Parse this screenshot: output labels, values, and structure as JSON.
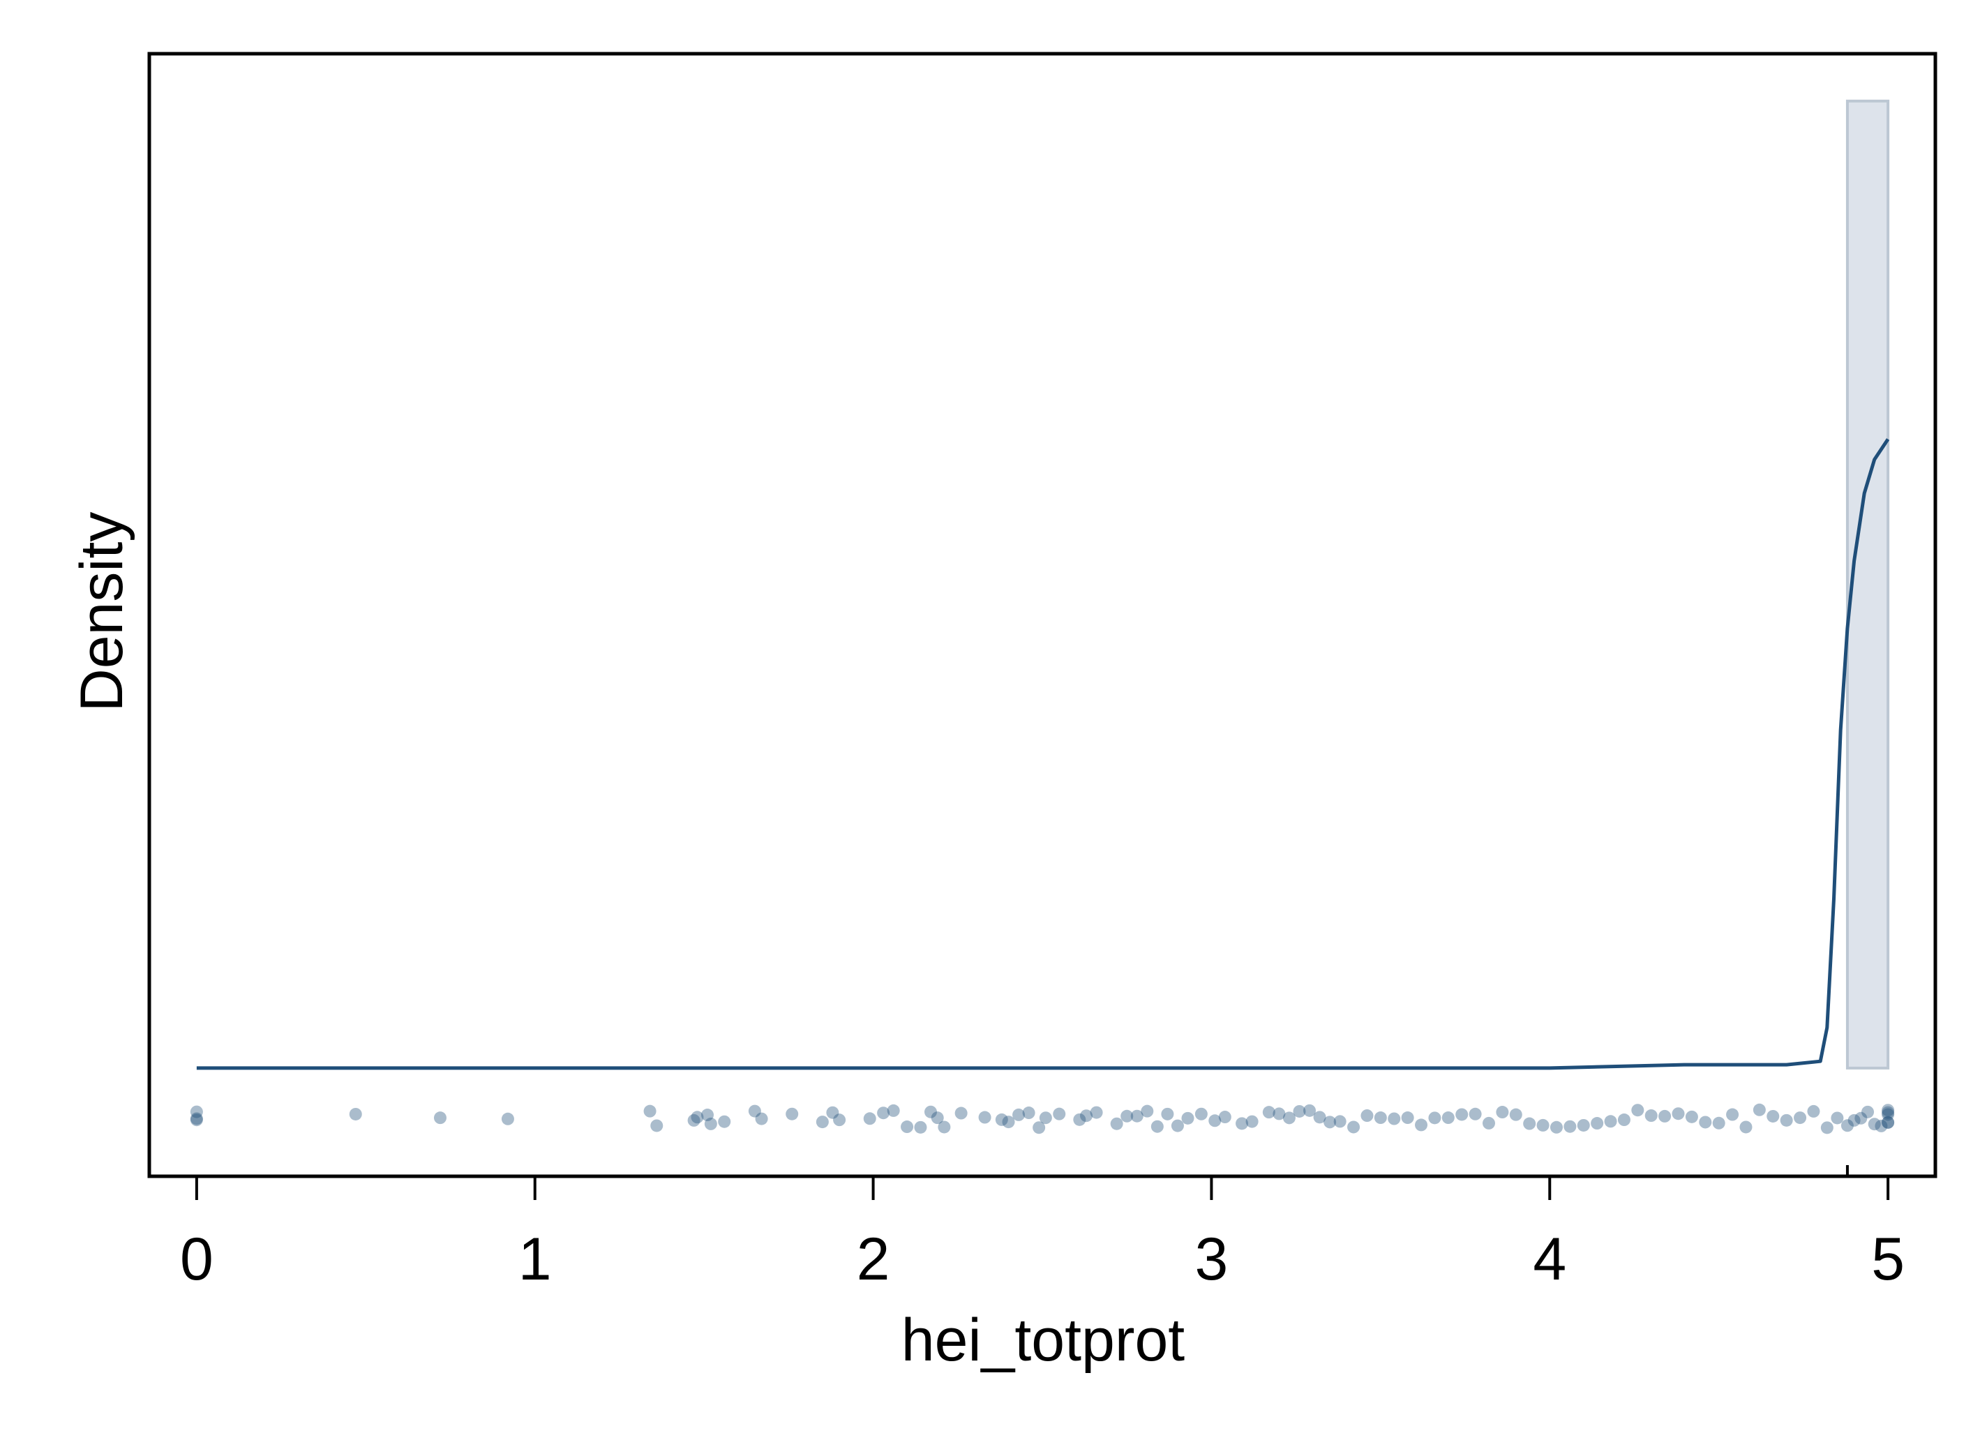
{
  "chart_data": {
    "type": "histogram",
    "xlabel": "hei_totprot",
    "ylabel": "Density",
    "xlim": [
      -0.14,
      5.14
    ],
    "ylim": [
      -0.32,
      3.0
    ],
    "x_ticks": [
      0,
      1,
      2,
      3,
      4,
      5
    ],
    "x_tick_labels": [
      "0",
      "1",
      "2",
      "3",
      "4",
      "5"
    ],
    "grid": false,
    "colors": {
      "line": "#1f4e79",
      "bar_fill": "#dde3eb",
      "bar_stroke": "#bcc7d3",
      "dots": "#1f4e79",
      "axis": "#000000"
    },
    "histogram_bins": [
      {
        "x0": 0.0,
        "x1": 4.88,
        "density": 0.0
      },
      {
        "x0": 4.88,
        "x1": 5.0,
        "density": 2.86
      }
    ],
    "kde_curve": [
      [
        0.0,
        0.0
      ],
      [
        0.5,
        0.0
      ],
      [
        1.0,
        0.0
      ],
      [
        1.5,
        0.0
      ],
      [
        2.0,
        0.0
      ],
      [
        2.5,
        0.0
      ],
      [
        3.0,
        0.0
      ],
      [
        3.5,
        0.0
      ],
      [
        4.0,
        0.0
      ],
      [
        4.4,
        0.01
      ],
      [
        4.7,
        0.01
      ],
      [
        4.8,
        0.02
      ],
      [
        4.82,
        0.12
      ],
      [
        4.84,
        0.5
      ],
      [
        4.86,
        1.0
      ],
      [
        4.88,
        1.3
      ],
      [
        4.9,
        1.5
      ],
      [
        4.93,
        1.7
      ],
      [
        4.96,
        1.8
      ],
      [
        5.0,
        1.86
      ]
    ],
    "rug_points": [
      0.0,
      0.0,
      0.0,
      0.47,
      0.72,
      0.92,
      1.34,
      1.36,
      1.47,
      1.48,
      1.51,
      1.52,
      1.56,
      1.65,
      1.67,
      1.76,
      1.85,
      1.88,
      1.9,
      1.99,
      2.03,
      2.06,
      2.1,
      2.14,
      2.17,
      2.19,
      2.21,
      2.26,
      2.33,
      2.38,
      2.4,
      2.43,
      2.46,
      2.49,
      2.51,
      2.55,
      2.61,
      2.63,
      2.66,
      2.72,
      2.75,
      2.78,
      2.81,
      2.84,
      2.87,
      2.9,
      2.93,
      2.97,
      3.01,
      3.04,
      3.09,
      3.12,
      3.17,
      3.2,
      3.23,
      3.26,
      3.29,
      3.32,
      3.35,
      3.38,
      3.42,
      3.46,
      3.5,
      3.54,
      3.58,
      3.62,
      3.66,
      3.7,
      3.74,
      3.78,
      3.82,
      3.86,
      3.9,
      3.94,
      3.98,
      4.02,
      4.06,
      4.1,
      4.14,
      4.18,
      4.22,
      4.26,
      4.3,
      4.34,
      4.38,
      4.42,
      4.46,
      4.5,
      4.54,
      4.58,
      4.62,
      4.66,
      4.7,
      4.74,
      4.78,
      4.82,
      4.85,
      4.88,
      4.9,
      4.92,
      4.94,
      4.96,
      4.98,
      5.0,
      5.0,
      5.0,
      5.0,
      5.0
    ]
  }
}
